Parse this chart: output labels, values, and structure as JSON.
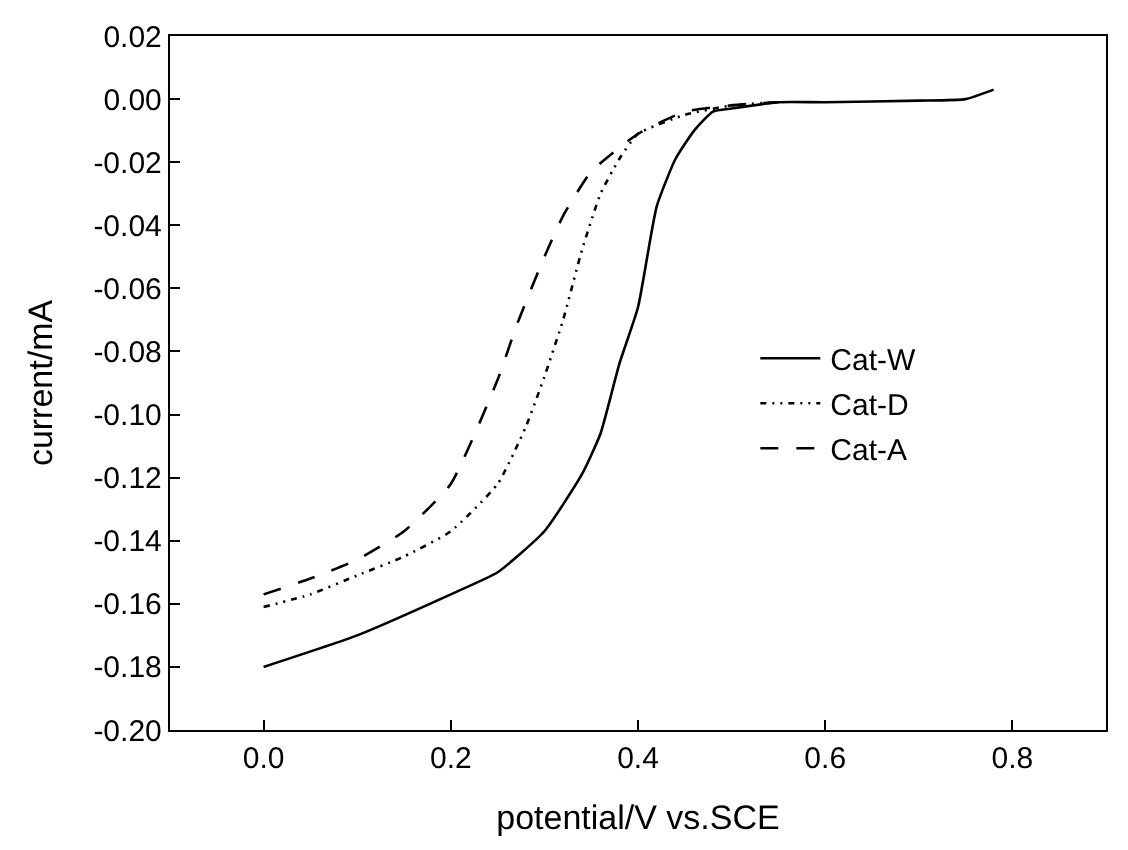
{
  "chart_data": {
    "type": "line",
    "xlabel": "potential/V vs.SCE",
    "ylabel": "current/mA",
    "xlim": [
      -0.1,
      0.9
    ],
    "xticks": [
      {
        "value": 0,
        "label": "0.0"
      },
      0.2,
      0.4,
      0.6,
      0.8
    ],
    "ylim": [
      -0.2,
      0.02
    ],
    "yticks": [
      {
        "value": -0.2,
        "label": "-0.20"
      },
      {
        "value": -0.18,
        "label": "-0.18"
      },
      {
        "value": -0.16,
        "label": "-0.16"
      },
      {
        "value": -0.14,
        "label": "-0.14"
      },
      {
        "value": -0.12,
        "label": "-0.12"
      },
      {
        "value": -0.1,
        "label": "-0.10"
      },
      {
        "value": -0.08,
        "label": "-0.08"
      },
      {
        "value": -0.06,
        "label": "-0.06"
      },
      {
        "value": -0.04,
        "label": "-0.04"
      },
      {
        "value": -0.02,
        "label": "-0.02"
      },
      {
        "value": 0,
        "label": "0.00"
      },
      0.02
    ],
    "legend": "right",
    "marker": "none",
    "series": [
      {
        "name": "Cat-W",
        "color": "#000000",
        "line_style": "solid",
        "x": [
          0,
          0.1,
          0.2,
          0.25,
          0.3,
          0.34,
          0.36,
          0.38,
          0.4,
          0.42,
          0.44,
          0.46,
          0.48,
          0.5,
          0.55,
          0.6,
          0.7,
          0.75,
          0.78
        ],
        "values": [
          -0.18,
          -0.17,
          -0.157,
          -0.15,
          -0.137,
          -0.119,
          -0.106,
          -0.084,
          -0.066,
          -0.034,
          -0.019,
          -0.01,
          -0.004,
          -0.003,
          -0.001,
          -0.001,
          -0.0005,
          0.0,
          0.003
        ]
      },
      {
        "name": "Cat-D",
        "color": "#000000",
        "line_style": "dashdotdot",
        "x": [
          0,
          0.05,
          0.1,
          0.15,
          0.2,
          0.25,
          0.28,
          0.3,
          0.32,
          0.34,
          0.36,
          0.38,
          0.4,
          0.45,
          0.5,
          0.55
        ],
        "values": [
          -0.161,
          -0.157,
          -0.151,
          -0.145,
          -0.137,
          -0.122,
          -0.104,
          -0.088,
          -0.07,
          -0.048,
          -0.03,
          -0.019,
          -0.011,
          -0.005,
          -0.002,
          -0.001
        ]
      },
      {
        "name": "Cat-A",
        "color": "#000000",
        "line_style": "dashed",
        "x": [
          0,
          0.05,
          0.1,
          0.15,
          0.2,
          0.25,
          0.27,
          0.3,
          0.32,
          0.35,
          0.4,
          0.45,
          0.5,
          0.55
        ],
        "values": [
          -0.157,
          -0.152,
          -0.146,
          -0.137,
          -0.122,
          -0.089,
          -0.072,
          -0.05,
          -0.037,
          -0.023,
          -0.011,
          -0.004,
          -0.002,
          -0.001
        ]
      }
    ]
  }
}
